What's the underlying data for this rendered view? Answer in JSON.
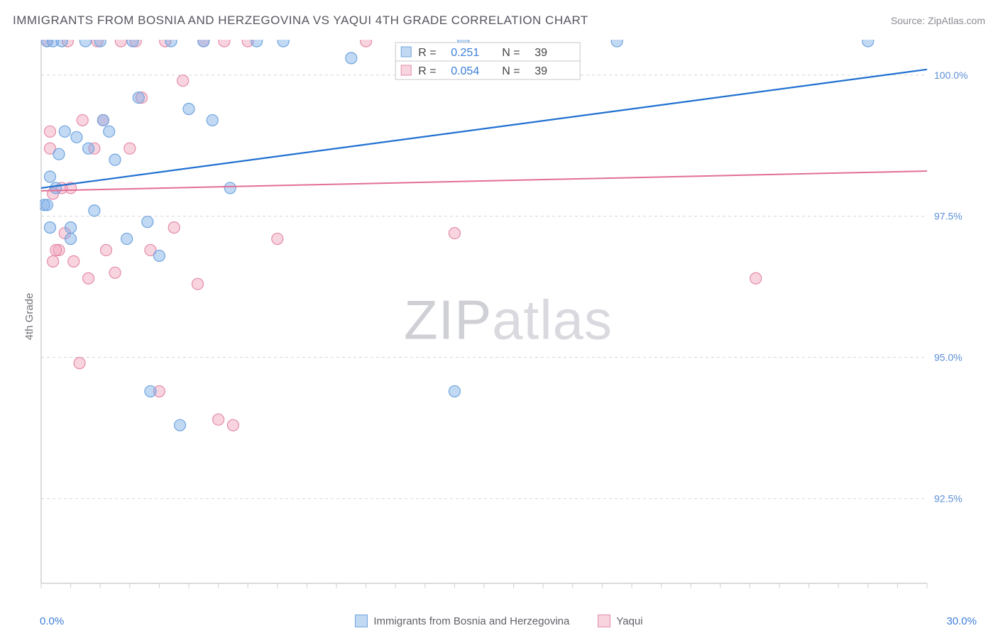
{
  "title": "IMMIGRANTS FROM BOSNIA AND HERZEGOVINA VS YAQUI 4TH GRADE CORRELATION CHART",
  "source_label": "Source: ZipAtlas.com",
  "watermark": {
    "bold": "ZIP",
    "rest": "atlas"
  },
  "y_axis_title": "4th Grade",
  "chart": {
    "type": "scatter",
    "background_color": "#ffffff",
    "grid_color": "#d6d6d6",
    "grid_dash": "4,4",
    "axis_color": "#cfcfd3",
    "tick_color": "#cfcfd3",
    "xlim": [
      0.0,
      30.0
    ],
    "ylim": [
      91.0,
      100.6
    ],
    "x_range_labels": [
      "0.0%",
      "30.0%"
    ],
    "x_range_label_color": "#3b7dd8",
    "y_ticks": [
      92.5,
      95.0,
      97.5,
      100.0
    ],
    "y_tick_labels": [
      "92.5%",
      "95.0%",
      "97.5%",
      "100.0%"
    ],
    "y_tick_label_color": "#5b8fd6",
    "y_tick_fontsize": 14,
    "x_minor_tick_step": 1.0,
    "marker_radius": 8,
    "marker_stroke_width": 1.2,
    "series": [
      {
        "label": "Immigrants from Bosnia and Herzegovina",
        "fill_color": "rgba(120,170,230,0.45)",
        "stroke_color": "#6fa4de",
        "line_color": "#1f6fd1",
        "line_width": 2.2,
        "R": "0.251",
        "N": "39",
        "trend": {
          "x1": 0.0,
          "y1": 98.0,
          "x2": 30.0,
          "y2": 100.1
        },
        "points": [
          [
            0.1,
            97.7
          ],
          [
            0.2,
            100.6
          ],
          [
            0.3,
            97.3
          ],
          [
            0.3,
            98.2
          ],
          [
            0.4,
            100.6
          ],
          [
            0.5,
            98.0
          ],
          [
            0.6,
            98.6
          ],
          [
            0.7,
            100.6
          ],
          [
            0.8,
            99.0
          ],
          [
            1.0,
            97.3
          ],
          [
            1.0,
            97.1
          ],
          [
            1.2,
            98.9
          ],
          [
            1.5,
            100.6
          ],
          [
            1.6,
            98.7
          ],
          [
            1.8,
            97.6
          ],
          [
            2.0,
            100.6
          ],
          [
            2.1,
            99.2
          ],
          [
            2.3,
            99.0
          ],
          [
            2.5,
            98.5
          ],
          [
            2.9,
            97.1
          ],
          [
            3.1,
            100.6
          ],
          [
            3.3,
            99.6
          ],
          [
            3.6,
            97.4
          ],
          [
            3.7,
            94.4
          ],
          [
            4.0,
            96.8
          ],
          [
            4.4,
            100.6
          ],
          [
            4.7,
            93.8
          ],
          [
            5.0,
            99.4
          ],
          [
            5.5,
            100.6
          ],
          [
            5.8,
            99.2
          ],
          [
            6.4,
            98.0
          ],
          [
            7.3,
            100.6
          ],
          [
            8.2,
            100.6
          ],
          [
            10.5,
            100.3
          ],
          [
            14.0,
            94.4
          ],
          [
            14.3,
            100.6
          ],
          [
            19.5,
            100.6
          ],
          [
            28.0,
            100.6
          ],
          [
            0.2,
            97.7
          ]
        ]
      },
      {
        "label": "Yaqui",
        "fill_color": "rgba(240,160,185,0.45)",
        "stroke_color": "#e48aa8",
        "line_color": "#e26e95",
        "line_width": 2.0,
        "R": "0.054",
        "N": "39",
        "trend": {
          "x1": 0.0,
          "y1": 97.95,
          "x2": 30.0,
          "y2": 98.3
        },
        "points": [
          [
            0.2,
            100.6
          ],
          [
            0.3,
            99.0
          ],
          [
            0.4,
            96.7
          ],
          [
            0.4,
            97.9
          ],
          [
            0.6,
            96.9
          ],
          [
            0.7,
            98.0
          ],
          [
            0.8,
            97.2
          ],
          [
            0.9,
            100.6
          ],
          [
            1.0,
            98.0
          ],
          [
            1.1,
            96.7
          ],
          [
            1.3,
            94.9
          ],
          [
            1.4,
            99.2
          ],
          [
            1.6,
            96.4
          ],
          [
            1.8,
            98.7
          ],
          [
            1.9,
            100.6
          ],
          [
            2.1,
            99.2
          ],
          [
            2.2,
            96.9
          ],
          [
            2.5,
            96.5
          ],
          [
            2.7,
            100.6
          ],
          [
            3.0,
            98.7
          ],
          [
            3.2,
            100.6
          ],
          [
            3.4,
            99.6
          ],
          [
            3.7,
            96.9
          ],
          [
            4.0,
            94.4
          ],
          [
            4.2,
            100.6
          ],
          [
            4.5,
            97.3
          ],
          [
            4.8,
            99.9
          ],
          [
            5.3,
            96.3
          ],
          [
            5.5,
            100.6
          ],
          [
            6.0,
            93.9
          ],
          [
            6.2,
            100.6
          ],
          [
            6.5,
            93.8
          ],
          [
            7.0,
            100.6
          ],
          [
            8.0,
            97.1
          ],
          [
            11.0,
            100.6
          ],
          [
            14.0,
            97.2
          ],
          [
            24.2,
            96.4
          ],
          [
            0.5,
            96.9
          ],
          [
            0.3,
            98.7
          ]
        ]
      }
    ],
    "stats_box": {
      "border_color": "#c7c7cc",
      "label_color": "#444",
      "value_color": "#3b7dd8",
      "r_label": "R  =",
      "n_label": "N  =",
      "fontsize": 16
    },
    "bottom_legend_fontsize": 15
  }
}
